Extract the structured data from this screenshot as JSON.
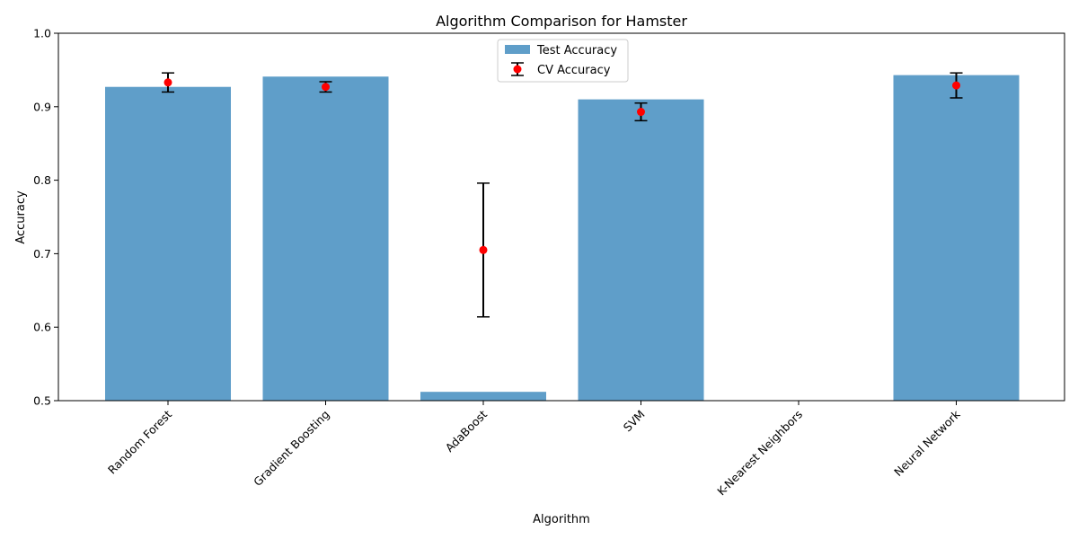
{
  "chart_data": {
    "type": "bar",
    "title": "Algorithm Comparison for Hamster",
    "xlabel": "Algorithm",
    "ylabel": "Accuracy",
    "ylim": [
      0.5,
      1.0
    ],
    "yticks": [
      "0.5",
      "0.6",
      "0.7",
      "0.8",
      "0.9",
      "1.0"
    ],
    "categories": [
      "Random Forest",
      "Gradient Boosting",
      "AdaBoost",
      "SVM",
      "K-Nearest Neighbors",
      "Neural Network"
    ],
    "series": [
      {
        "name": "Test Accuracy",
        "kind": "bar",
        "color": "#5f9ec9",
        "values": [
          0.927,
          0.941,
          0.512,
          0.91,
          null,
          0.943
        ]
      },
      {
        "name": "CV Accuracy",
        "kind": "point-errorbar",
        "color": "#ff0000",
        "values": [
          0.933,
          0.927,
          0.705,
          0.893,
          null,
          0.929
        ],
        "error": [
          0.013,
          0.007,
          0.091,
          0.012,
          null,
          0.017
        ]
      }
    ],
    "legend_position": "top-center",
    "grid": false
  }
}
